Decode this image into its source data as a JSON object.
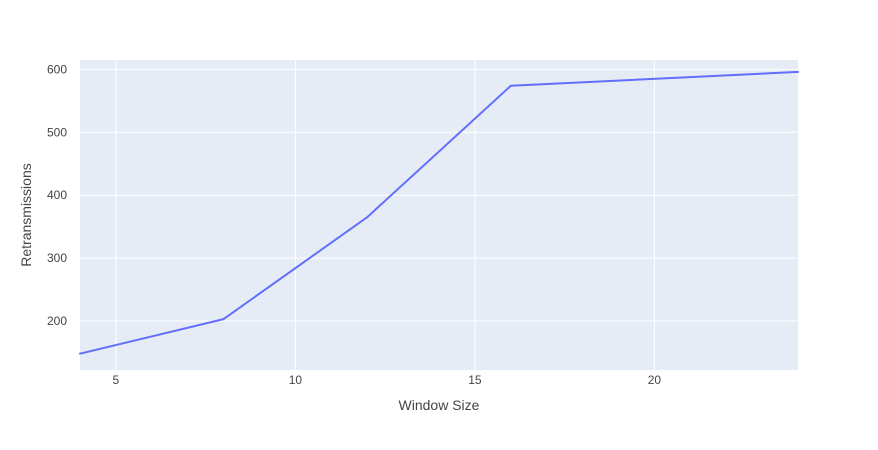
{
  "chart_data": {
    "type": "line",
    "title": "",
    "xlabel": "Window Size",
    "ylabel": "Retransmissions",
    "x": [
      4,
      8,
      12,
      16,
      24
    ],
    "series": [
      {
        "values": [
          148,
          203,
          365,
          574,
          596
        ]
      }
    ],
    "xlim": [
      4,
      24
    ],
    "ylim": [
      122,
      615
    ],
    "x_ticks": [
      "5",
      "10",
      "15",
      "20"
    ],
    "y_ticks": [
      "200",
      "300",
      "400",
      "500",
      "600"
    ],
    "grid": true,
    "legend": "none",
    "colors": {
      "plot_background": "#e5ecf6",
      "grid": "#ffffff",
      "line": "#636efa",
      "text": "#444444"
    }
  }
}
